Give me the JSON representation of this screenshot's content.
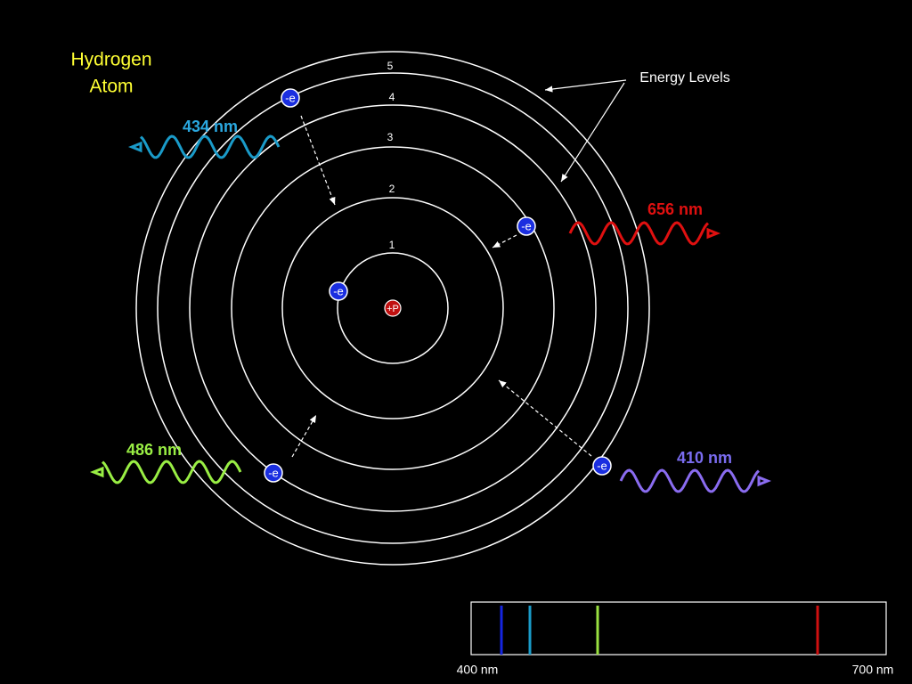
{
  "title": [
    "Hydrogen",
    "Atom"
  ],
  "levels": [
    "1",
    "2",
    "3",
    "4",
    "5"
  ],
  "proton": "+P",
  "electrons": [
    "-e",
    "-e",
    "-e",
    "-e",
    "-e"
  ],
  "energy_levels_label": "Energy Levels",
  "emissions": [
    "434 nm",
    "656 nm",
    "486 nm",
    "410 nm"
  ],
  "spectrum": {
    "start_label": "400 nm",
    "end_label": "700 nm"
  }
}
